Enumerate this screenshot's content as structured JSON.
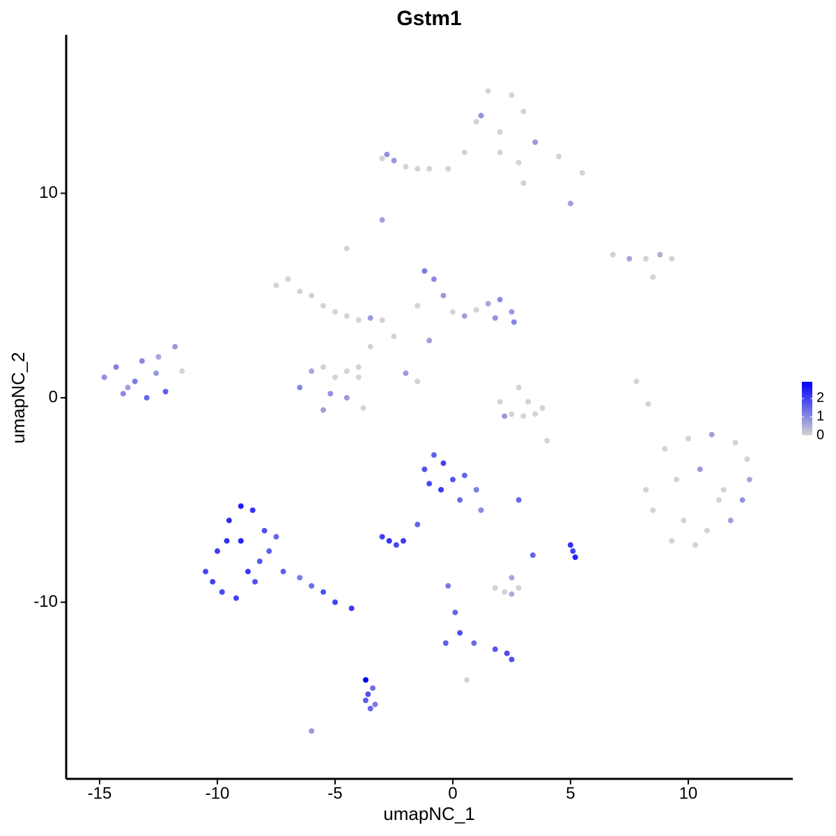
{
  "chart_data": {
    "type": "scatter",
    "title": "Gstm1",
    "x_label": "umapNC_1",
    "y_label": "umapNC_2",
    "xlim": [
      -16.42,
      14.44
    ],
    "ylim": [
      -18.64,
      17.75
    ],
    "xticks": [
      -15,
      -10,
      -5,
      0,
      5,
      10
    ],
    "yticks": [
      -10,
      0,
      10
    ],
    "color_low": "#d3d3d3",
    "color_high": "#0000ff",
    "clim": [
      0,
      2.9
    ],
    "cticks": [
      0,
      1,
      2
    ],
    "x": [
      1.5,
      2.5,
      3.0,
      1.0,
      2.0,
      3.5,
      4.5,
      5.5,
      0.5,
      2.0,
      3.0,
      5.0,
      -0.2,
      1.2,
      2.8,
      -3,
      -2.5,
      -2,
      -1.5,
      -1,
      -2.8,
      6.8,
      7.5,
      8.2,
      8.8,
      9.3,
      8.5,
      -3,
      -4.5,
      -7.5,
      -7.0,
      -6.5,
      -6.0,
      -5.5,
      -5.0,
      -4.5,
      -4.0,
      -3.5,
      -3.0,
      -1.2,
      -0.8,
      -0.4,
      0.0,
      0.5,
      1.0,
      1.5,
      2.0,
      2.5,
      2.6,
      -1.5,
      1.8,
      -2.5,
      -3.5,
      -4.0,
      -2.0,
      -1.5,
      -1.0,
      -14.8,
      -14.3,
      -13.8,
      -13.2,
      -12.6,
      -12.2,
      -14.0,
      -13.0,
      -12.5,
      -11.8,
      -11.5,
      -13.5,
      -6.5,
      -6.0,
      -5.5,
      -5.0,
      -4.5,
      -4.0,
      -4.5,
      -5.5,
      -3.8,
      -5.2,
      2.0,
      2.5,
      3.0,
      3.5,
      3.8,
      2.8,
      3.2,
      2.2,
      9.0,
      10.0,
      11.0,
      12.0,
      12.5,
      9.5,
      10.5,
      11.5,
      12.3,
      8.5,
      9.8,
      10.8,
      11.8,
      9.3,
      10.3,
      11.3,
      12.6,
      8.2,
      -10.5,
      -10.0,
      -9.5,
      -9.0,
      -8.5,
      -8.0,
      -7.5,
      -9.8,
      -9.2,
      -8.7,
      -8.2,
      -7.8,
      -10.2,
      -9.6,
      -9.0,
      -8.4,
      -7.2,
      -6.5,
      -6.0,
      -5.5,
      -5.0,
      -4.3,
      -1.2,
      -0.8,
      -0.4,
      0.0,
      0.5,
      1.0,
      -0.5,
      0.3,
      1.2,
      -1.0,
      -3.0,
      -2.7,
      -2.4,
      -2.1,
      -1.5,
      -0.2,
      0.1,
      0.3,
      -0.3,
      0.9,
      1.8,
      2.3,
      2.5,
      -3.7,
      -3.6,
      -3.5,
      -3.3,
      -3.7,
      -3.4,
      1.8,
      2.2,
      2.5,
      2.8,
      2.5,
      5.0,
      5.1,
      5.2,
      3.4,
      2.8,
      7.8,
      8.3,
      -6.0,
      0.6,
      4.0
    ],
    "y": [
      15.0,
      14.8,
      14.0,
      13.5,
      13.0,
      12.5,
      11.8,
      11.0,
      12.0,
      12.0,
      10.5,
      9.5,
      11.2,
      13.8,
      11.5,
      11.7,
      11.6,
      11.3,
      11.2,
      11.2,
      11.9,
      7.0,
      6.8,
      6.8,
      7.0,
      6.8,
      5.9,
      8.7,
      7.3,
      5.5,
      5.8,
      5.2,
      5.0,
      4.5,
      4.2,
      4.0,
      3.8,
      3.9,
      3.8,
      6.2,
      5.8,
      5.0,
      4.2,
      4.0,
      4.3,
      4.6,
      4.8,
      4.2,
      3.7,
      4.5,
      3.9,
      3.0,
      2.5,
      1.5,
      1.2,
      0.8,
      2.8,
      1.0,
      1.5,
      0.5,
      1.8,
      1.2,
      0.3,
      0.2,
      0.0,
      2.0,
      2.5,
      1.3,
      0.8,
      0.5,
      1.3,
      1.5,
      1.0,
      1.3,
      1.0,
      0.0,
      -0.6,
      -0.5,
      0.2,
      -0.2,
      -0.8,
      -0.9,
      -0.8,
      -0.5,
      0.5,
      -0.2,
      -0.9,
      -2.5,
      -2.0,
      -1.8,
      -2.2,
      -3.0,
      -4.0,
      -3.5,
      -4.5,
      -5.0,
      -5.5,
      -6.0,
      -6.5,
      -6.0,
      -7.0,
      -7.2,
      -5.0,
      -4.0,
      -4.5,
      -8.5,
      -7.5,
      -6.0,
      -5.3,
      -5.5,
      -6.5,
      -6.8,
      -9.5,
      -9.8,
      -8.5,
      -8.0,
      -7.5,
      -9.0,
      -7.0,
      -7.0,
      -9.0,
      -8.5,
      -8.8,
      -9.2,
      -9.5,
      -10.0,
      -10.3,
      -3.5,
      -2.8,
      -3.2,
      -4.0,
      -3.8,
      -4.5,
      -4.5,
      -5.0,
      -5.5,
      -4.2,
      -6.8,
      -7.0,
      -7.2,
      -7.0,
      -6.2,
      -9.2,
      -10.5,
      -11.5,
      -12.0,
      -12.0,
      -12.3,
      -12.5,
      -12.8,
      -13.8,
      -14.5,
      -15.2,
      -15.0,
      -14.8,
      -14.2,
      -9.3,
      -9.5,
      -9.6,
      -9.3,
      -8.8,
      -7.2,
      -7.5,
      -7.8,
      -7.7,
      -5.0,
      0.8,
      -0.3,
      -16.3,
      -13.8,
      -2.1
    ],
    "values": [
      0,
      0,
      0,
      0,
      0,
      0.8,
      0,
      0,
      0,
      0,
      0,
      0.7,
      0,
      0.9,
      0,
      0,
      0.8,
      0,
      0,
      0,
      0.9,
      0,
      0.6,
      0,
      0.5,
      0,
      0,
      0.7,
      0,
      0,
      0,
      0,
      0,
      0,
      0,
      0,
      0,
      0.8,
      0,
      1.2,
      1.0,
      0.8,
      0,
      0.7,
      0,
      0.6,
      1.0,
      0.8,
      1.1,
      0,
      0.9,
      0,
      0,
      0,
      0.8,
      0,
      0.7,
      0.9,
      1.1,
      0.7,
      1.0,
      0.8,
      1.6,
      1.0,
      1.5,
      0.6,
      0.8,
      0,
      1.2,
      1.0,
      0.6,
      0,
      0,
      0,
      0,
      0.8,
      0.7,
      0,
      0.9,
      0,
      0,
      0,
      0,
      0,
      0,
      0,
      0.8,
      0,
      0,
      0.7,
      0,
      0,
      0,
      0.8,
      0,
      0.9,
      0,
      0,
      0,
      0.7,
      0,
      0,
      0,
      0.6,
      0,
      1.9,
      2.0,
      2.3,
      2.5,
      2.2,
      1.8,
      1.5,
      1.9,
      2.0,
      2.1,
      1.7,
      1.6,
      2.0,
      2.2,
      2.4,
      1.8,
      1.6,
      1.2,
      1.4,
      1.8,
      2.0,
      2.1,
      1.8,
      1.6,
      2.0,
      1.7,
      1.5,
      1.2,
      2.1,
      1.4,
      1.0,
      1.9,
      2.0,
      2.2,
      1.9,
      2.1,
      1.5,
      1.2,
      1.5,
      1.8,
      1.6,
      1.4,
      1.7,
      1.9,
      1.8,
      2.9,
      1.8,
      1.5,
      1.2,
      1.6,
      1.4,
      0,
      0,
      0.5,
      0,
      0.6,
      2.2,
      2.0,
      2.4,
      1.5,
      1.5,
      0,
      0,
      0.8,
      0,
      0
    ]
  }
}
